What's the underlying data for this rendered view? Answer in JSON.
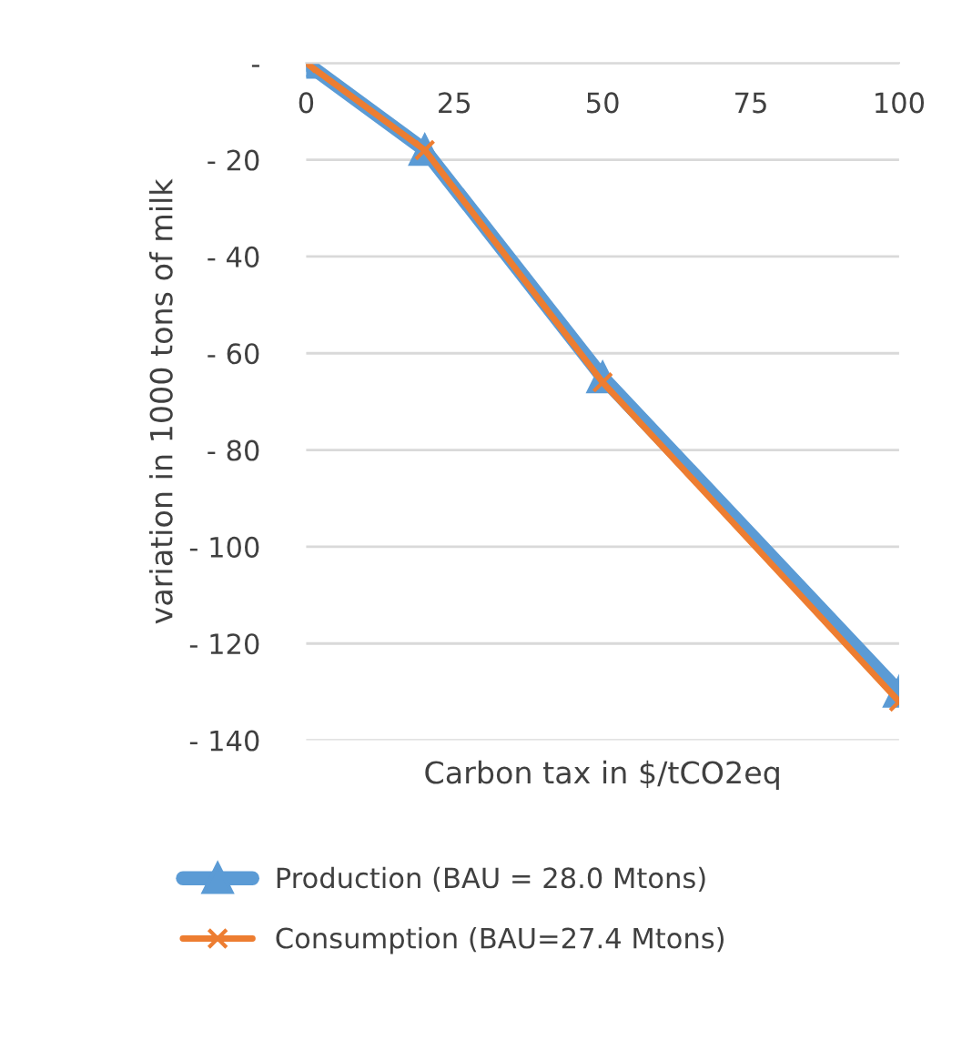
{
  "chart_data": {
    "type": "line",
    "xlabel": "Carbon tax in $/tCO2eq",
    "ylabel": "variation in 1000 tons of milk",
    "x": [
      0,
      20,
      50,
      100
    ],
    "series": [
      {
        "name": "Production (BAU = 28.0 Mtons)",
        "color": "#5b9bd5",
        "marker": "triangle",
        "values": [
          0,
          -18,
          -65,
          -130
        ]
      },
      {
        "name": "Consumption (BAU=27.4 Mtons)",
        "color": "#ed7d31",
        "marker": "cross",
        "values": [
          0,
          -18,
          -66,
          -132
        ]
      }
    ],
    "xlim": [
      0,
      100
    ],
    "xticks": [
      0,
      25,
      50,
      75,
      100
    ],
    "ylim": [
      -140,
      0
    ],
    "yticks": [
      {
        "value": 0,
        "label": "-"
      },
      {
        "value": -20,
        "label": "- 20"
      },
      {
        "value": -40,
        "label": "- 40"
      },
      {
        "value": -60,
        "label": "- 60"
      },
      {
        "value": -80,
        "label": "- 80"
      },
      {
        "value": -100,
        "label": "- 100"
      },
      {
        "value": -120,
        "label": "- 120"
      },
      {
        "value": -140,
        "label": "- 140"
      }
    ],
    "grid": "y",
    "legend": "bottom",
    "line_style": "solid"
  }
}
